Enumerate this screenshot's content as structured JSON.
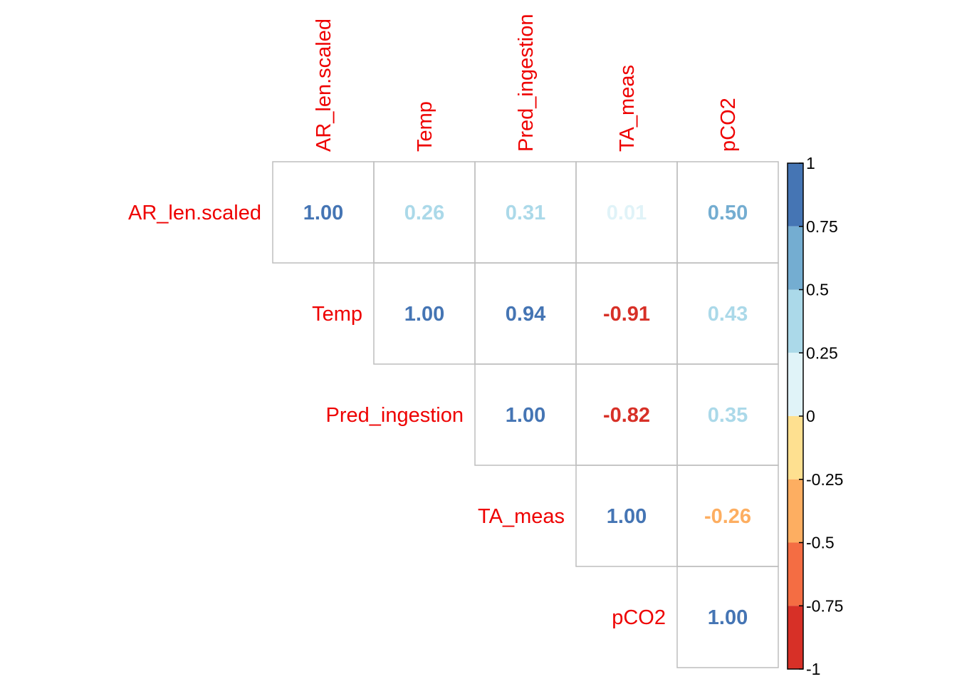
{
  "chart_data": {
    "type": "heatmap",
    "variables": [
      "AR_len.scaled",
      "Temp",
      "Pred_ingestion",
      "TA_meas",
      "pCO2"
    ],
    "matrix_part": "upper",
    "cells": [
      {
        "row": "AR_len.scaled",
        "col": "AR_len.scaled",
        "value": 1.0,
        "label": "1.00"
      },
      {
        "row": "AR_len.scaled",
        "col": "Temp",
        "value": 0.26,
        "label": "0.26"
      },
      {
        "row": "AR_len.scaled",
        "col": "Pred_ingestion",
        "value": 0.31,
        "label": "0.31"
      },
      {
        "row": "AR_len.scaled",
        "col": "TA_meas",
        "value": 0.01,
        "label": "0.01"
      },
      {
        "row": "AR_len.scaled",
        "col": "pCO2",
        "value": 0.5,
        "label": "0.50"
      },
      {
        "row": "Temp",
        "col": "Temp",
        "value": 1.0,
        "label": "1.00"
      },
      {
        "row": "Temp",
        "col": "Pred_ingestion",
        "value": 0.94,
        "label": "0.94"
      },
      {
        "row": "Temp",
        "col": "TA_meas",
        "value": -0.91,
        "label": "-0.91"
      },
      {
        "row": "Temp",
        "col": "pCO2",
        "value": 0.43,
        "label": "0.43"
      },
      {
        "row": "Pred_ingestion",
        "col": "Pred_ingestion",
        "value": 1.0,
        "label": "1.00"
      },
      {
        "row": "Pred_ingestion",
        "col": "TA_meas",
        "value": -0.82,
        "label": "-0.82"
      },
      {
        "row": "Pred_ingestion",
        "col": "pCO2",
        "value": 0.35,
        "label": "0.35"
      },
      {
        "row": "TA_meas",
        "col": "TA_meas",
        "value": 1.0,
        "label": "1.00"
      },
      {
        "row": "TA_meas",
        "col": "pCO2",
        "value": -0.26,
        "label": "-0.26"
      },
      {
        "row": "pCO2",
        "col": "pCO2",
        "value": 1.0,
        "label": "1.00"
      }
    ],
    "colorbar": {
      "range": [
        -1,
        1
      ],
      "ticks": [
        {
          "value": 1,
          "label": "1"
        },
        {
          "value": 0.75,
          "label": "0.75"
        },
        {
          "value": 0.5,
          "label": "0.5"
        },
        {
          "value": 0.25,
          "label": "0.25"
        },
        {
          "value": 0,
          "label": "0"
        },
        {
          "value": -0.25,
          "label": "-0.25"
        },
        {
          "value": -0.5,
          "label": "-0.5"
        },
        {
          "value": -0.75,
          "label": "-0.75"
        },
        {
          "value": -1,
          "label": "-1"
        }
      ],
      "bins": [
        {
          "from": 0.75,
          "to": 1,
          "color": "#4575B4"
        },
        {
          "from": 0.5,
          "to": 0.75,
          "color": "#74ADD1"
        },
        {
          "from": 0.25,
          "to": 0.5,
          "color": "#ABD9E9"
        },
        {
          "from": 0,
          "to": 0.25,
          "color": "#E0F3F8"
        },
        {
          "from": -0.25,
          "to": 0,
          "color": "#FEE090"
        },
        {
          "from": -0.5,
          "to": -0.25,
          "color": "#FDAE61"
        },
        {
          "from": -0.75,
          "to": -0.5,
          "color": "#F46D43"
        },
        {
          "from": -1,
          "to": -0.75,
          "color": "#D73027"
        }
      ]
    },
    "label_color": "#EE0000",
    "grid_color": "#BEBEBE"
  }
}
